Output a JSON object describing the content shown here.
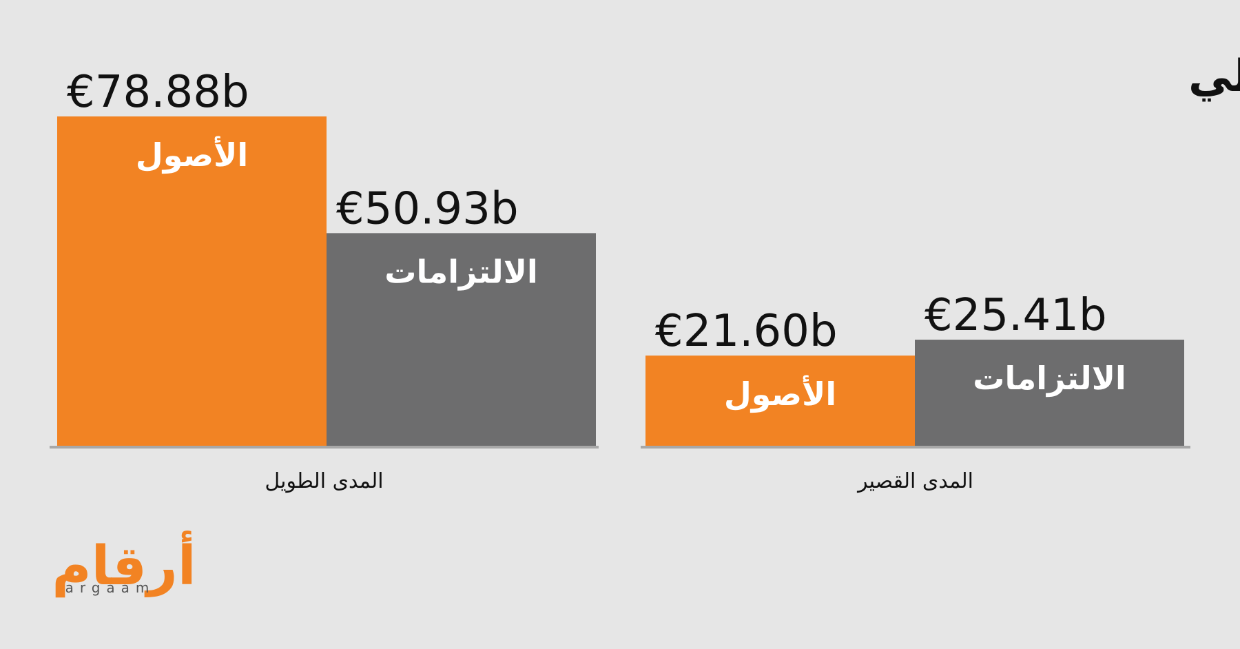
{
  "chart_data": {
    "type": "bar",
    "title": "تحليل المركز المالي",
    "categories": [
      "المدى الطويل",
      "المدى القصير"
    ],
    "series": [
      {
        "name": "الأصول",
        "color": "#f28323",
        "values": [
          78.88,
          21.6
        ],
        "value_labels": [
          "€78.88b",
          "€21.60b"
        ]
      },
      {
        "name": "الالتزامات",
        "color": "#6d6d6e",
        "values": [
          50.93,
          25.41
        ],
        "value_labels": [
          "€50.93b",
          "€25.41b"
        ]
      }
    ]
  },
  "logo": {
    "text": "أرقام",
    "subtext": "argaam"
  }
}
